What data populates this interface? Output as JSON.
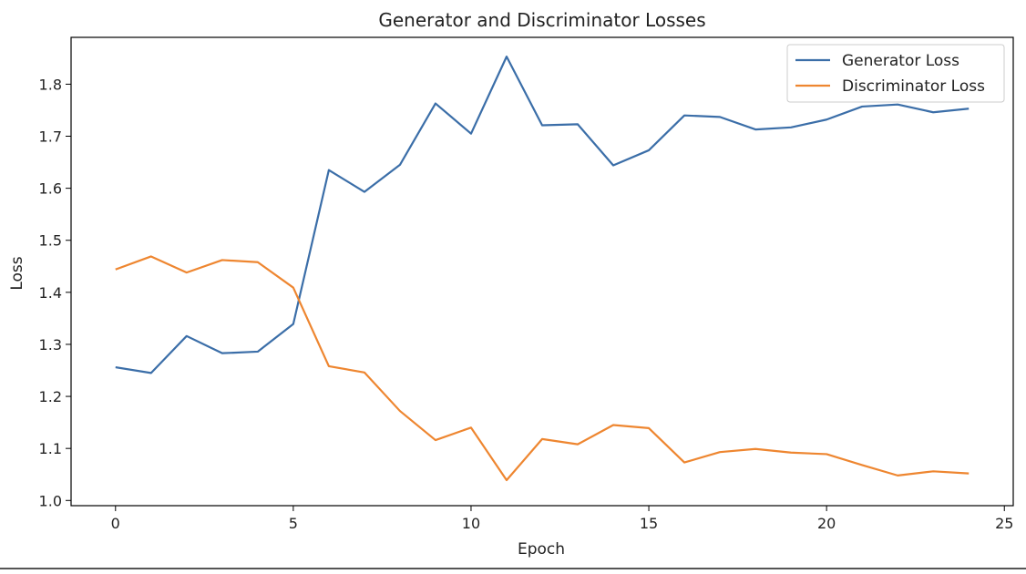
{
  "chart_data": {
    "type": "line",
    "title": "Generator and Discriminator Losses",
    "xlabel": "Epoch",
    "ylabel": "Loss",
    "xlim": [
      -1.25,
      25.25
    ],
    "ylim": [
      0.99,
      1.89
    ],
    "xticks": [
      0,
      5,
      10,
      15,
      20,
      25
    ],
    "yticks": [
      1.0,
      1.1,
      1.2,
      1.3,
      1.4,
      1.5,
      1.6,
      1.7,
      1.8
    ],
    "x": [
      0,
      1,
      2,
      3,
      4,
      5,
      6,
      7,
      8,
      9,
      10,
      11,
      12,
      13,
      14,
      15,
      16,
      17,
      18,
      19,
      20,
      21,
      22,
      23,
      24
    ],
    "series": [
      {
        "name": "Generator Loss",
        "color": "#3b6ea8",
        "values": [
          1.256,
          1.245,
          1.316,
          1.283,
          1.286,
          1.339,
          1.635,
          1.593,
          1.645,
          1.763,
          1.705,
          1.853,
          1.721,
          1.723,
          1.644,
          1.673,
          1.74,
          1.737,
          1.713,
          1.717,
          1.732,
          1.757,
          1.761,
          1.746,
          1.753
        ]
      },
      {
        "name": "Discriminator Loss",
        "color": "#ee8630",
        "values": [
          1.444,
          1.469,
          1.438,
          1.462,
          1.458,
          1.409,
          1.258,
          1.246,
          1.172,
          1.116,
          1.14,
          1.039,
          1.118,
          1.108,
          1.145,
          1.139,
          1.073,
          1.093,
          1.099,
          1.092,
          1.089,
          1.068,
          1.048,
          1.056,
          1.052
        ]
      }
    ],
    "grid": false,
    "legend": "top-right"
  }
}
